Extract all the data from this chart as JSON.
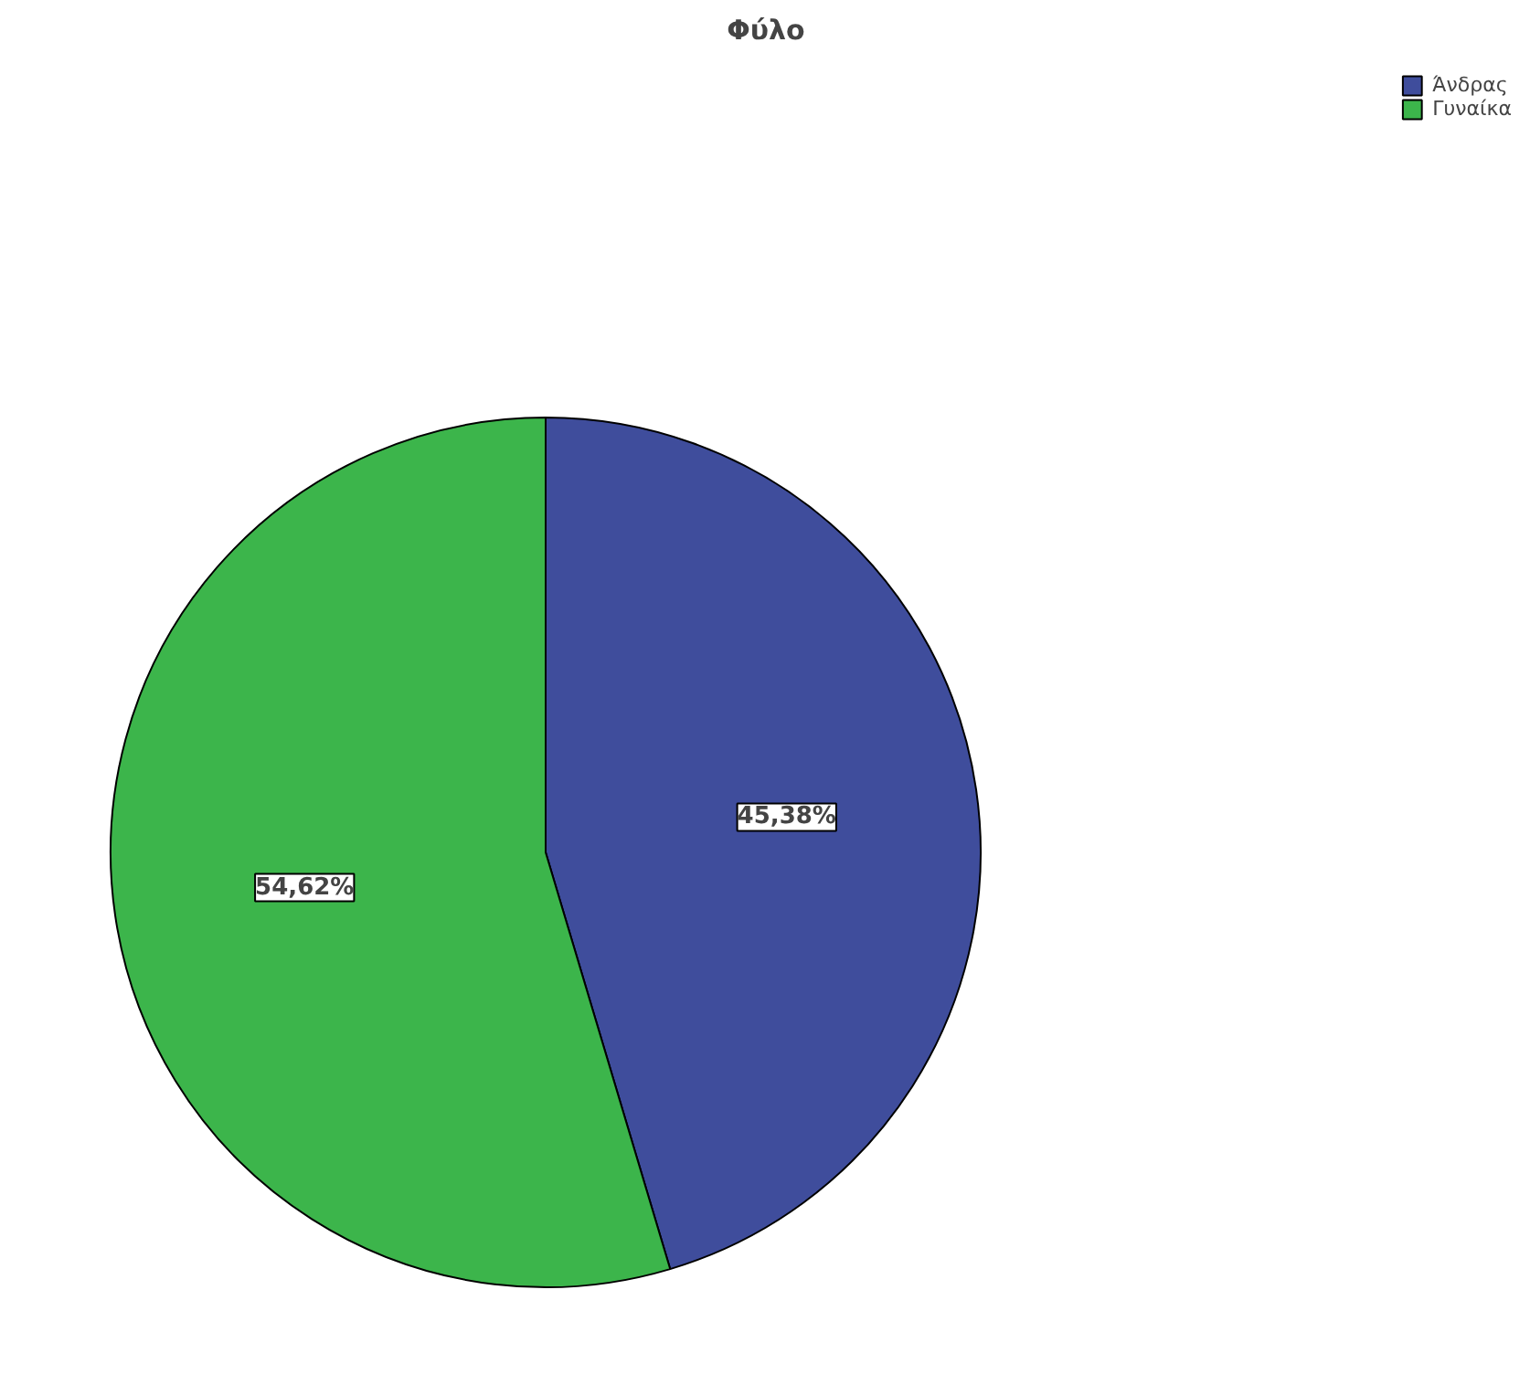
{
  "chart_data": {
    "type": "pie",
    "title": "Φύλο",
    "categories": [
      "Άνδρας",
      "Γυναίκα"
    ],
    "values": [
      45.38,
      54.62
    ],
    "colors": [
      "#3f4d9c",
      "#3cb54b"
    ],
    "value_labels": [
      "45,38%",
      "54,62%"
    ],
    "legend": "top right"
  }
}
